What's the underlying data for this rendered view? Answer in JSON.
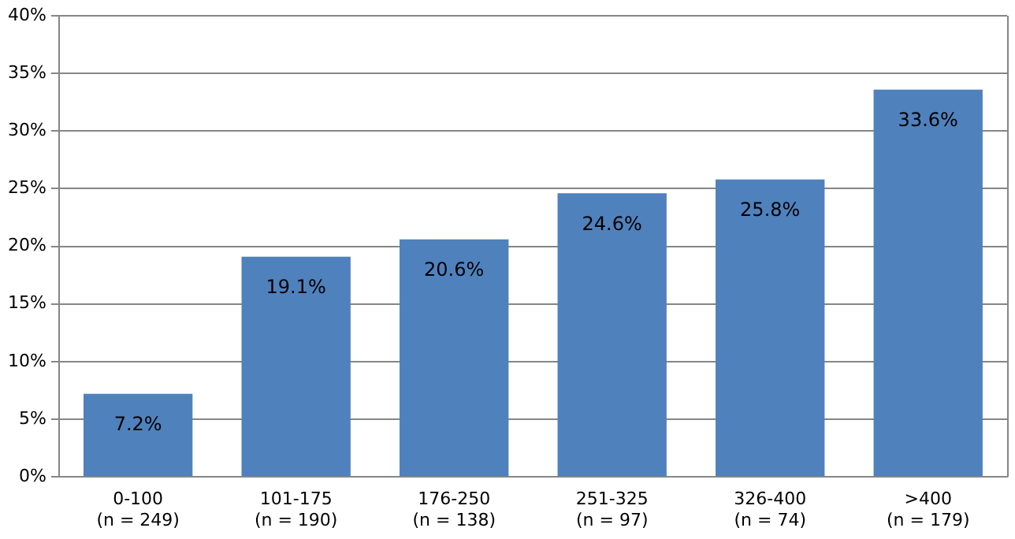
{
  "chart_data": {
    "type": "bar",
    "categories": [
      "0-100\n(n = 249)",
      "101-175\n(n = 190)",
      "176-250\n(n = 138)",
      "251-325\n(n = 97)",
      "326-400\n(n = 74)",
      ">400\n(n = 179)"
    ],
    "values": [
      7.2,
      19.1,
      20.6,
      24.6,
      25.8,
      33.6
    ],
    "value_labels": [
      "7.2%",
      "19.1%",
      "20.6%",
      "24.6%",
      "25.8%",
      "33.6%"
    ],
    "color": "#4f81bd",
    "ylim": [
      0,
      40
    ],
    "yticks": [
      {
        "value": 0,
        "label": "0%"
      },
      {
        "value": 5,
        "label": "5%"
      },
      {
        "value": 10,
        "label": "10%"
      },
      {
        "value": 15,
        "label": "15%"
      },
      {
        "value": 20,
        "label": "20%"
      },
      {
        "value": 25,
        "label": "25%"
      },
      {
        "value": 30,
        "label": "30%"
      },
      {
        "value": 35,
        "label": "35%"
      },
      {
        "value": 40,
        "label": "40%"
      }
    ],
    "grid": "y",
    "legend": false
  }
}
